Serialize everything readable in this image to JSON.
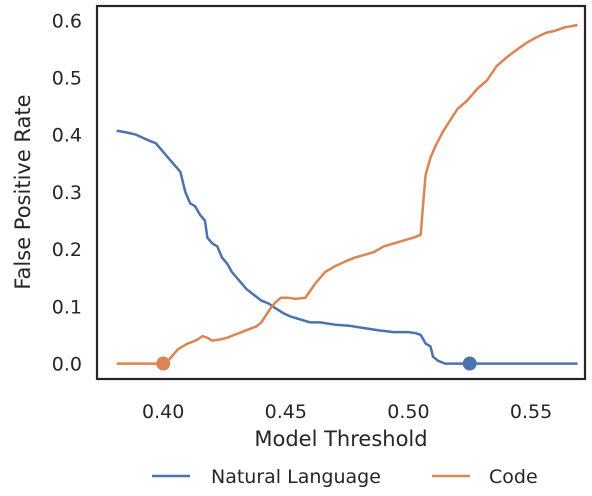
{
  "chart_data": {
    "type": "line",
    "title": "",
    "xlabel": "Model Threshold",
    "ylabel": "False Positive Rate",
    "xlim": [
      0.373,
      0.572
    ],
    "ylim": [
      -0.027,
      0.625
    ],
    "xticks": [
      0.4,
      0.45,
      0.5,
      0.55
    ],
    "xtick_labels": [
      "0.40",
      "0.45",
      "0.50",
      "0.55"
    ],
    "yticks": [
      0.0,
      0.1,
      0.2,
      0.3,
      0.4,
      0.5,
      0.6
    ],
    "ytick_labels": [
      "0.0",
      "0.1",
      "0.2",
      "0.3",
      "0.4",
      "0.5",
      "0.6"
    ],
    "grid": false,
    "legend_position": "bottom",
    "series": [
      {
        "name": "Natural Language",
        "color": "#4c72b0",
        "x": [
          0.381,
          0.385,
          0.389,
          0.393,
          0.397,
          0.4,
          0.404,
          0.407,
          0.409,
          0.411,
          0.413,
          0.415,
          0.417,
          0.418,
          0.42,
          0.422,
          0.424,
          0.426,
          0.428,
          0.431,
          0.434,
          0.437,
          0.44,
          0.443,
          0.446,
          0.449,
          0.452,
          0.456,
          0.46,
          0.464,
          0.47,
          0.476,
          0.482,
          0.488,
          0.494,
          0.5,
          0.503,
          0.505,
          0.507,
          0.509,
          0.51,
          0.512,
          0.515,
          0.52,
          0.525,
          0.53,
          0.54,
          0.55,
          0.56,
          0.569
        ],
        "y": [
          0.407,
          0.404,
          0.4,
          0.392,
          0.385,
          0.37,
          0.35,
          0.335,
          0.3,
          0.28,
          0.275,
          0.26,
          0.25,
          0.22,
          0.21,
          0.205,
          0.185,
          0.175,
          0.16,
          0.145,
          0.13,
          0.12,
          0.11,
          0.105,
          0.096,
          0.088,
          0.082,
          0.077,
          0.072,
          0.072,
          0.068,
          0.066,
          0.062,
          0.058,
          0.055,
          0.055,
          0.053,
          0.05,
          0.035,
          0.03,
          0.012,
          0.005,
          0.0,
          0.0,
          0.0,
          0.0,
          0.0,
          0.0,
          0.0,
          0.0
        ],
        "marker": {
          "x": 0.525,
          "y": 0.0
        }
      },
      {
        "name": "Code",
        "color": "#dd8452",
        "x": [
          0.381,
          0.385,
          0.39,
          0.395,
          0.4,
          0.402,
          0.404,
          0.406,
          0.408,
          0.41,
          0.412,
          0.414,
          0.416,
          0.418,
          0.42,
          0.423,
          0.426,
          0.429,
          0.432,
          0.435,
          0.438,
          0.44,
          0.442,
          0.444,
          0.446,
          0.448,
          0.451,
          0.454,
          0.458,
          0.462,
          0.466,
          0.47,
          0.474,
          0.478,
          0.482,
          0.486,
          0.49,
          0.494,
          0.498,
          0.502,
          0.505,
          0.506,
          0.507,
          0.509,
          0.511,
          0.514,
          0.517,
          0.52,
          0.524,
          0.528,
          0.532,
          0.536,
          0.54,
          0.544,
          0.548,
          0.552,
          0.556,
          0.56,
          0.564,
          0.567,
          0.569
        ],
        "y": [
          0.0,
          0.0,
          0.0,
          0.0,
          0.0,
          0.005,
          0.015,
          0.025,
          0.03,
          0.035,
          0.038,
          0.042,
          0.048,
          0.045,
          0.04,
          0.042,
          0.045,
          0.05,
          0.055,
          0.06,
          0.065,
          0.072,
          0.085,
          0.098,
          0.108,
          0.115,
          0.115,
          0.113,
          0.115,
          0.14,
          0.16,
          0.17,
          0.178,
          0.185,
          0.19,
          0.195,
          0.205,
          0.21,
          0.215,
          0.22,
          0.225,
          0.28,
          0.33,
          0.36,
          0.38,
          0.405,
          0.425,
          0.445,
          0.46,
          0.48,
          0.495,
          0.52,
          0.535,
          0.548,
          0.56,
          0.57,
          0.578,
          0.582,
          0.588,
          0.59,
          0.592
        ],
        "marker": {
          "x": 0.4,
          "y": 0.0
        }
      }
    ]
  }
}
